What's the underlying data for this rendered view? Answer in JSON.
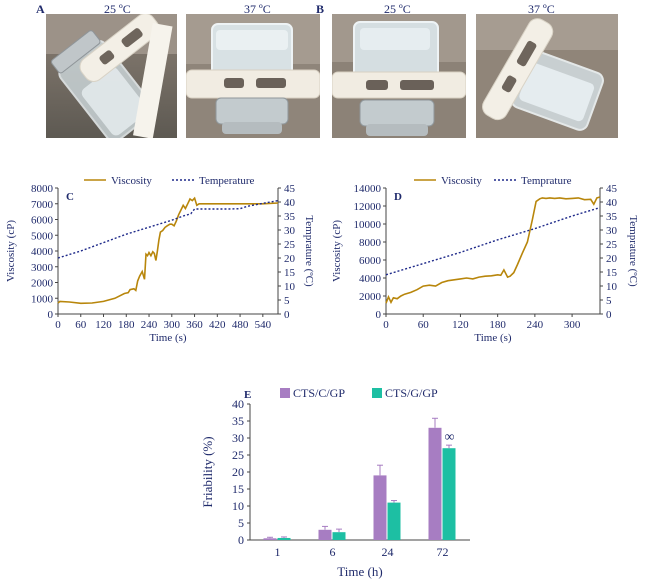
{
  "figure": {
    "panel_a": {
      "letter": "A",
      "temps": [
        "25 ºC",
        "37 ºC"
      ]
    },
    "panel_b": {
      "letter": "B",
      "temps": [
        "25 ºC",
        "37 ºC"
      ]
    }
  },
  "colors": {
    "viscosity": "#b8860b",
    "temperature": "#1f2a8a",
    "axis_text": "#1f2a6b",
    "cts_c_gp": "#a77dc2",
    "cts_g_gp": "#1dbfa3",
    "error_bar": "#a77dc2"
  },
  "chart_data": [
    {
      "panel": "C",
      "type": "line",
      "xlabel": "Time (s)",
      "ylabel": "Viscosity (cP)",
      "y2label": "Temprature (ºC)",
      "xlim": [
        0,
        580
      ],
      "xticks": [
        0,
        60,
        120,
        180,
        240,
        300,
        360,
        420,
        480,
        540
      ],
      "ylim": [
        0,
        8000
      ],
      "yticks": [
        0,
        1000,
        2000,
        3000,
        4000,
        5000,
        6000,
        7000,
        8000
      ],
      "y2lim": [
        0,
        45
      ],
      "y2ticks": [
        0,
        5,
        10,
        15,
        20,
        25,
        30,
        35,
        40,
        45
      ],
      "legend": [
        "Viscosity",
        "Temperature"
      ],
      "series": [
        {
          "name": "Viscosity",
          "axis": "left",
          "style": "solid",
          "x": [
            0,
            5,
            30,
            60,
            90,
            120,
            150,
            175,
            185,
            190,
            200,
            205,
            210,
            215,
            222,
            228,
            232,
            236,
            240,
            245,
            250,
            254,
            258,
            262,
            266,
            270,
            276,
            282,
            288,
            295,
            300,
            306,
            312,
            318,
            324,
            330,
            336,
            342,
            348,
            354,
            360,
            366,
            372,
            380,
            400,
            450,
            500,
            540,
            580
          ],
          "y": [
            700,
            800,
            760,
            680,
            700,
            800,
            1000,
            1300,
            1350,
            1550,
            1600,
            1500,
            2100,
            2400,
            2700,
            2200,
            3800,
            3700,
            3900,
            3700,
            3950,
            3850,
            3400,
            4000,
            4700,
            5200,
            5300,
            5500,
            5600,
            5700,
            5700,
            5600,
            5900,
            6300,
            6600,
            6900,
            6700,
            7000,
            7300,
            7200,
            7350,
            6900,
            7000,
            7000,
            7000,
            7000,
            7000,
            7000,
            7050
          ]
        },
        {
          "name": "Temperature",
          "axis": "right",
          "style": "dotted",
          "x": [
            0,
            60,
            120,
            180,
            240,
            300,
            330,
            350,
            360,
            390,
            420,
            450,
            480,
            500,
            540,
            580
          ],
          "y": [
            20,
            22.5,
            25.5,
            28.5,
            31,
            33.5,
            35,
            35.8,
            37.5,
            37.5,
            37.5,
            37.5,
            37.6,
            38.5,
            39.5,
            40.5
          ]
        }
      ]
    },
    {
      "panel": "D",
      "type": "line",
      "xlabel": "Time (s)",
      "ylabel": "Viscosity (cP)",
      "y2label": "Temprature (ºC)",
      "xlim": [
        0,
        345
      ],
      "xticks": [
        0,
        60,
        120,
        180,
        240,
        300
      ],
      "ylim": [
        0,
        14000
      ],
      "yticks": [
        0,
        2000,
        4000,
        6000,
        8000,
        10000,
        12000,
        14000
      ],
      "y2lim": [
        0,
        45
      ],
      "y2ticks": [
        0,
        5,
        10,
        15,
        20,
        25,
        30,
        35,
        40,
        45
      ],
      "legend": [
        "Viscosity",
        "Temprature"
      ],
      "series": [
        {
          "name": "Viscosity",
          "axis": "left",
          "style": "solid",
          "x": [
            0,
            4,
            8,
            12,
            18,
            24,
            30,
            40,
            50,
            60,
            70,
            80,
            90,
            100,
            110,
            120,
            130,
            140,
            150,
            160,
            170,
            180,
            185,
            190,
            196,
            200,
            206,
            212,
            220,
            228,
            236,
            242,
            248,
            252,
            258,
            264,
            272,
            280,
            290,
            300,
            310,
            320,
            330,
            335,
            340,
            345
          ],
          "y": [
            1200,
            1900,
            1300,
            1800,
            1700,
            2000,
            2200,
            2400,
            2700,
            3100,
            3200,
            3100,
            3500,
            3700,
            3800,
            3900,
            4000,
            3900,
            4100,
            4200,
            4250,
            4350,
            4300,
            4900,
            4100,
            4200,
            4600,
            5500,
            6800,
            8000,
            10500,
            12500,
            12800,
            12900,
            12850,
            12900,
            12850,
            12900,
            12800,
            12850,
            12900,
            12700,
            12750,
            12200,
            12900,
            13000
          ]
        },
        {
          "name": "Temprature",
          "axis": "right",
          "style": "dotted",
          "x": [
            0,
            60,
            120,
            180,
            240,
            300,
            345
          ],
          "y": [
            14,
            18,
            22,
            26.5,
            30.5,
            35,
            38
          ]
        }
      ]
    },
    {
      "panel": "E",
      "type": "bar",
      "xlabel": "Time (h)",
      "ylabel": "Friability (%)",
      "categories": [
        "1",
        "6",
        "24",
        "72"
      ],
      "ylim": [
        0,
        40
      ],
      "yticks": [
        0,
        5,
        10,
        15,
        20,
        25,
        30,
        35,
        40
      ],
      "series": [
        {
          "name": "CTS/C/GP",
          "values": [
            0.5,
            3.0,
            19.0,
            33.0
          ],
          "errors": [
            0.3,
            1.0,
            3.0,
            2.8
          ]
        },
        {
          "name": "CTS/G/GP",
          "values": [
            0.6,
            2.3,
            11.0,
            27.0
          ],
          "errors": [
            0.3,
            0.9,
            0.6,
            0.9
          ]
        }
      ],
      "annotations": [
        {
          "category": "72",
          "text": "∞"
        }
      ]
    }
  ]
}
